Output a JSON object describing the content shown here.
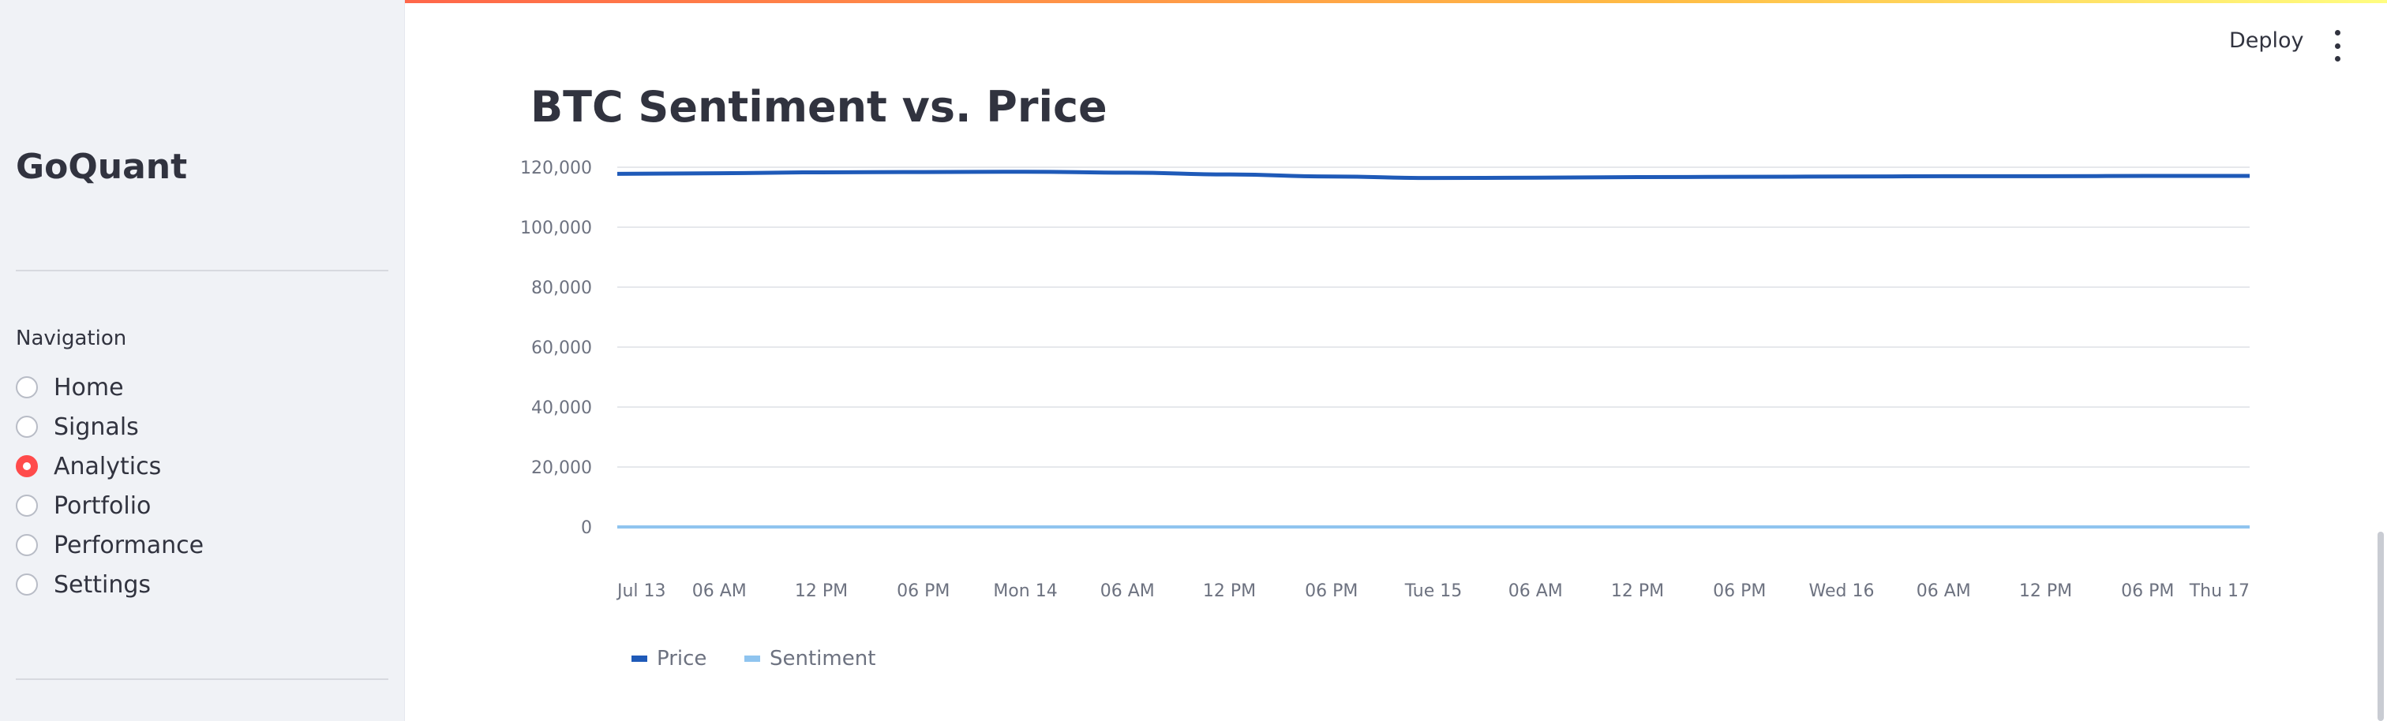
{
  "app": {
    "brand": "GoQuant",
    "deploy_label": "Deploy",
    "kebab_icon": "more-vertical-icon"
  },
  "sidebar": {
    "nav_label": "Navigation",
    "items": [
      {
        "label": "Home",
        "selected": false
      },
      {
        "label": "Signals",
        "selected": false
      },
      {
        "label": "Analytics",
        "selected": true
      },
      {
        "label": "Portfolio",
        "selected": false
      },
      {
        "label": "Performance",
        "selected": false
      },
      {
        "label": "Settings",
        "selected": false
      }
    ]
  },
  "page": {
    "title": "BTC Sentiment vs. Price"
  },
  "colors": {
    "accent": "#ff4b4b",
    "price": "#1f5ab8",
    "sentiment": "#8fc4ef"
  },
  "chart_data": {
    "type": "line",
    "title": "BTC Sentiment vs. Price",
    "ylim": [
      0,
      120000
    ],
    "y_ticks": [
      "120,000",
      "100,000",
      "80,000",
      "60,000",
      "40,000",
      "20,000",
      "0"
    ],
    "x_ticks": [
      "Jul 13",
      "06 AM",
      "12 PM",
      "06 PM",
      "Mon 14",
      "06 AM",
      "12 PM",
      "06 PM",
      "Tue 15",
      "06 AM",
      "12 PM",
      "06 PM",
      "Wed 16",
      "06 AM",
      "12 PM",
      "06 PM",
      "Thu 17"
    ],
    "grid": true,
    "legend_position": "bottom-left",
    "series": [
      {
        "name": "Price",
        "color": "#1f5ab8",
        "x": [
          "Jul 13 00:00",
          "Jul 13 06:00",
          "Jul 13 12:00",
          "Jul 13 18:00",
          "Jul 14 00:00",
          "Jul 14 06:00",
          "Jul 14 12:00",
          "Jul 14 18:00",
          "Jul 15 00:00",
          "Jul 15 06:00",
          "Jul 15 12:00",
          "Jul 15 18:00",
          "Jul 16 00:00",
          "Jul 16 06:00",
          "Jul 16 12:00",
          "Jul 16 18:00",
          "Jul 17 00:00"
        ],
        "values": [
          117800,
          118000,
          118300,
          118400,
          118500,
          118200,
          117600,
          116900,
          116400,
          116500,
          116700,
          116800,
          116900,
          117000,
          117000,
          117100,
          117100
        ]
      },
      {
        "name": "Sentiment",
        "color": "#8fc4ef",
        "x": [
          "Jul 13 00:00",
          "Jul 17 00:00"
        ],
        "values": [
          0,
          0
        ]
      }
    ]
  }
}
